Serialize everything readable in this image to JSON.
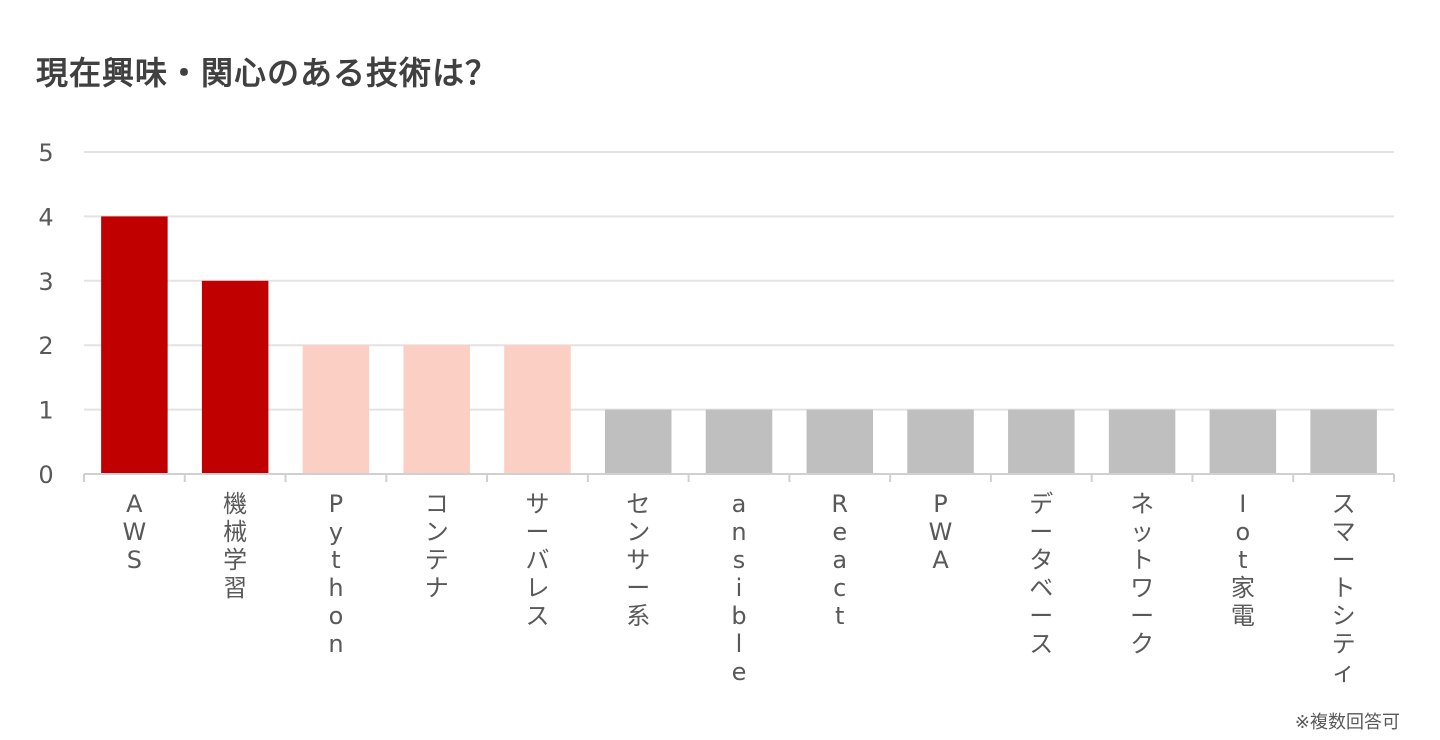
{
  "chart_data": {
    "type": "bar",
    "title": "現在興味・関心のある技術は？",
    "note": "※複数回答可",
    "categories": [
      "AWS",
      "機械学習",
      "Python",
      "コンテナ",
      "サーバレス",
      "センサー系",
      "ansible",
      "React",
      "PWA",
      "データベース",
      "ネットワーク",
      "Iot家電",
      "スマートシティ"
    ],
    "values": [
      4,
      3,
      2,
      2,
      2,
      1,
      1,
      1,
      1,
      1,
      1,
      1,
      1
    ],
    "bar_colors": [
      "#c00000",
      "#c00000",
      "#fccfc4",
      "#fccfc4",
      "#fccfc4",
      "#bfbfbf",
      "#bfbfbf",
      "#bfbfbf",
      "#bfbfbf",
      "#bfbfbf",
      "#bfbfbf",
      "#bfbfbf",
      "#bfbfbf"
    ],
    "xlabel": "",
    "ylabel": "",
    "ylim": [
      0,
      5
    ],
    "yticks": [
      0,
      1,
      2,
      3,
      4,
      5
    ],
    "grid": true,
    "legend": "none",
    "x_label_orientation": "vertical"
  }
}
